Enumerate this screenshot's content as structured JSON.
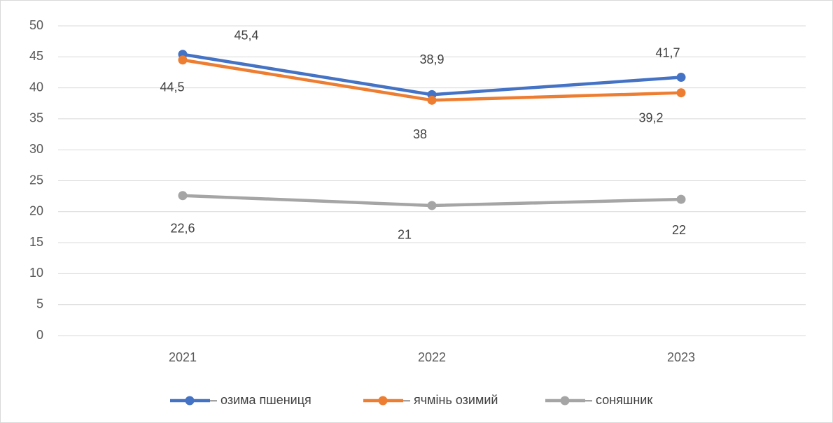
{
  "chart_data": {
    "type": "line",
    "categories": [
      "2021",
      "2022",
      "2023"
    ],
    "series": [
      {
        "name": "– озима пшениця",
        "color": "#4472c4",
        "values": [
          45.4,
          38.9,
          41.7
        ],
        "value_labels": [
          "45,4",
          "38,9",
          "41,7"
        ]
      },
      {
        "name": "– ячмінь озимий",
        "color": "#ed7d31",
        "values": [
          44.5,
          38,
          39.2
        ],
        "value_labels": [
          "44,5",
          "38",
          "39,2"
        ]
      },
      {
        "name": "– соняшник",
        "color": "#a5a5a5",
        "values": [
          22.6,
          21,
          22
        ],
        "value_labels": [
          "22,6",
          "21",
          "22"
        ]
      }
    ],
    "ylim": [
      0,
      50
    ],
    "yticks": [
      0,
      5,
      10,
      15,
      20,
      25,
      30,
      35,
      40,
      45,
      50
    ],
    "grid": true,
    "legend": "bottom"
  }
}
